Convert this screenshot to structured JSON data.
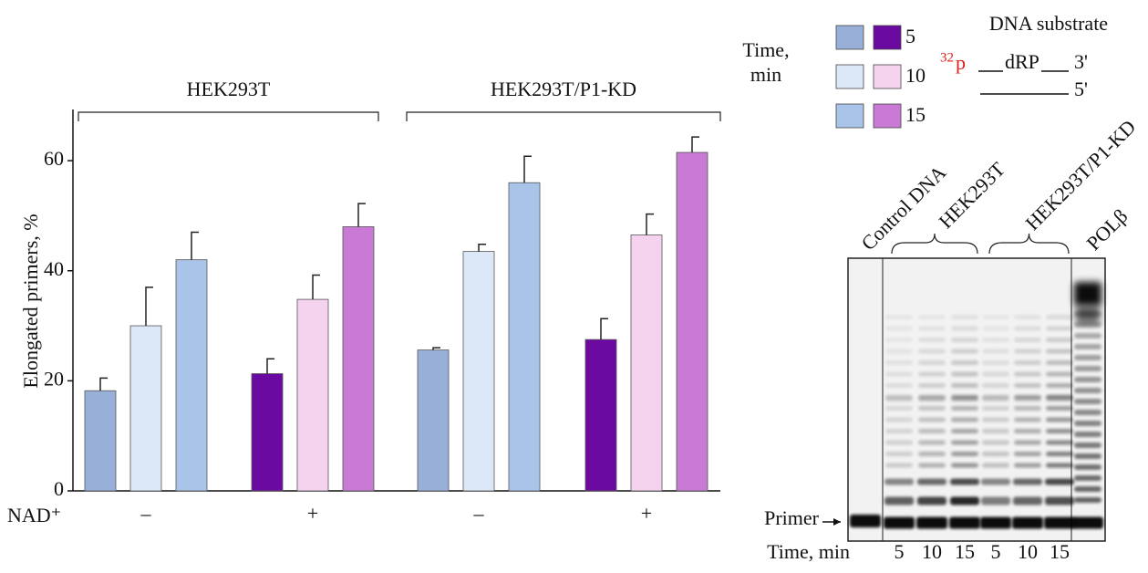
{
  "chart_data": {
    "type": "bar",
    "y_label": "Elongated primers, %",
    "x_row_label": "NAD⁺",
    "legend_title": [
      "Time,",
      "min"
    ],
    "groups": [
      "HEK293T",
      "HEK293T/P1-KD"
    ],
    "categories": [
      "–",
      "+",
      "–",
      "+"
    ],
    "series": [
      {
        "name": "5",
        "colors": [
          "#98b0d8",
          "#6a0aa0",
          "#98b0d8",
          "#6a0aa0"
        ],
        "values": [
          18.2,
          21.3,
          25.6,
          27.5
        ],
        "errors": [
          2.3,
          2.7,
          0.4,
          3.8
        ]
      },
      {
        "name": "10",
        "colors": [
          "#dce8f7",
          "#f5d3ef",
          "#dce8f7",
          "#f5d3ef"
        ],
        "values": [
          30,
          34.8,
          43.5,
          46.5
        ],
        "errors": [
          7,
          4.4,
          1.3,
          3.8
        ]
      },
      {
        "name": "15",
        "colors": [
          "#a9c4e8",
          "#c87ad4",
          "#a9c4e8",
          "#c87ad4"
        ],
        "values": [
          42,
          48,
          56,
          61.5
        ],
        "errors": [
          5,
          4.2,
          4.8,
          2.8
        ]
      }
    ],
    "ylim": [
      0,
      69.3
    ],
    "yticks": [
      0,
      20,
      40,
      60
    ]
  },
  "gel": {
    "substrate_title": "DNA substrate",
    "label_isotope": "32",
    "label_p": "p",
    "label_drp": "dRP",
    "end_top": "3'",
    "end_bottom": "5'",
    "lane_labels": [
      "Control DNA",
      "HEK293T",
      "HEK293T/P1-KD",
      "POLβ"
    ],
    "primer_label": "Primer",
    "time_label": "Time, min",
    "times": [
      "5",
      "10",
      "15",
      "5",
      "10",
      "15"
    ]
  }
}
